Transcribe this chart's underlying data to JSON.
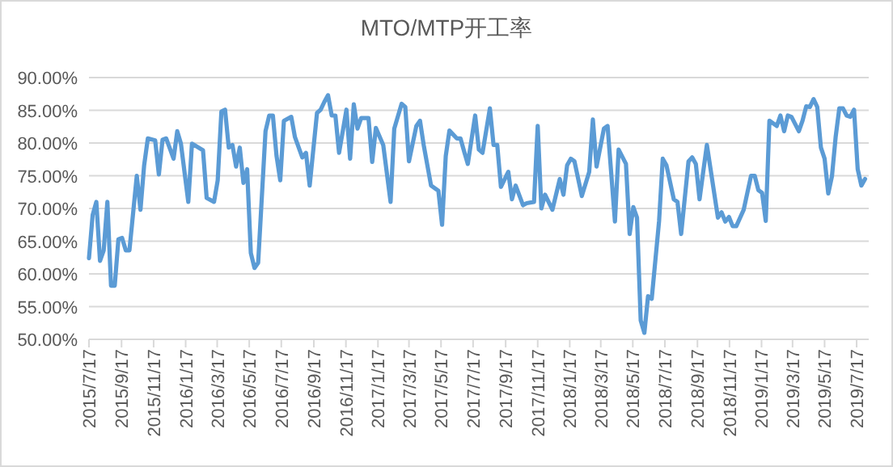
{
  "chart_data": {
    "type": "line",
    "title": "MTO/MTP开工率",
    "color": "#5b9bd5",
    "grid": "y",
    "x": [
      "2015-07-17",
      "2015-07-24",
      "2015-07-31",
      "2015-08-07",
      "2015-08-14",
      "2015-08-21",
      "2015-08-28",
      "2015-09-04",
      "2015-09-11",
      "2015-09-18",
      "2015-09-25",
      "2015-10-02",
      "2015-10-16",
      "2015-10-23",
      "2015-10-30",
      "2015-11-06",
      "2015-11-20",
      "2015-11-27",
      "2015-12-04",
      "2015-12-11",
      "2015-12-25",
      "2016-01-01",
      "2016-01-08",
      "2016-01-22",
      "2016-01-29",
      "2016-02-19",
      "2016-02-26",
      "2016-03-11",
      "2016-03-18",
      "2016-03-25",
      "2016-04-01",
      "2016-04-08",
      "2016-04-15",
      "2016-04-22",
      "2016-04-29",
      "2016-05-06",
      "2016-05-13",
      "2016-05-20",
      "2016-05-27",
      "2016-06-03",
      "2016-06-17",
      "2016-06-24",
      "2016-07-01",
      "2016-07-08",
      "2016-07-15",
      "2016-07-22",
      "2016-08-05",
      "2016-08-12",
      "2016-08-26",
      "2016-09-02",
      "2016-09-09",
      "2016-09-23",
      "2016-09-30",
      "2016-10-07",
      "2016-10-14",
      "2016-10-21",
      "2016-10-28",
      "2016-11-04",
      "2016-11-18",
      "2016-11-25",
      "2016-12-02",
      "2016-12-09",
      "2016-12-16",
      "2016-12-30",
      "2017-01-06",
      "2017-01-13",
      "2017-01-27",
      "2017-02-10",
      "2017-02-17",
      "2017-03-03",
      "2017-03-10",
      "2017-03-17",
      "2017-03-31",
      "2017-04-07",
      "2017-04-14",
      "2017-04-28",
      "2017-05-12",
      "2017-05-19",
      "2017-05-26",
      "2017-06-02",
      "2017-06-16",
      "2017-06-23",
      "2017-06-30",
      "2017-07-07",
      "2017-07-21",
      "2017-07-28",
      "2017-08-04",
      "2017-08-18",
      "2017-08-25",
      "2017-09-01",
      "2017-09-08",
      "2017-09-22",
      "2017-09-29",
      "2017-10-06",
      "2017-10-20",
      "2017-10-27",
      "2017-11-10",
      "2017-11-17",
      "2017-11-24",
      "2017-12-01",
      "2017-12-15",
      "2017-12-29",
      "2018-01-05",
      "2018-01-12",
      "2018-01-19",
      "2018-01-26",
      "2018-02-09",
      "2018-02-23",
      "2018-03-02",
      "2018-03-09",
      "2018-03-23",
      "2018-03-30",
      "2018-04-13",
      "2018-04-20",
      "2018-05-04",
      "2018-05-11",
      "2018-05-18",
      "2018-05-25",
      "2018-06-01",
      "2018-06-08",
      "2018-06-15",
      "2018-06-22",
      "2018-07-06",
      "2018-07-13",
      "2018-07-20",
      "2018-08-03",
      "2018-08-10",
      "2018-08-17",
      "2018-08-31",
      "2018-09-07",
      "2018-09-14",
      "2018-09-21",
      "2018-09-28",
      "2018-10-05",
      "2018-10-26",
      "2018-11-02",
      "2018-11-09",
      "2018-11-16",
      "2018-11-23",
      "2018-11-30",
      "2018-12-14",
      "2018-12-28",
      "2019-01-04",
      "2019-01-11",
      "2019-01-18",
      "2019-01-25",
      "2019-02-01",
      "2019-02-08",
      "2019-02-15",
      "2019-02-22",
      "2019-03-01",
      "2019-03-08",
      "2019-03-15",
      "2019-03-29",
      "2019-04-05",
      "2019-04-12",
      "2019-04-19",
      "2019-04-26",
      "2019-05-03",
      "2019-05-10",
      "2019-05-17",
      "2019-05-24",
      "2019-05-31",
      "2019-06-07",
      "2019-06-14",
      "2019-06-21",
      "2019-06-28",
      "2019-07-05",
      "2019-07-12",
      "2019-07-19",
      "2019-07-26",
      "2019-08-02"
    ],
    "values": [
      62.4,
      69,
      71,
      62,
      63.6,
      71,
      58.2,
      58.2,
      65.3,
      65.5,
      63.6,
      63.6,
      75,
      69.8,
      76.6,
      80.7,
      80.4,
      75.2,
      80.5,
      80.7,
      77.6,
      81.8,
      79.9,
      71,
      79.9,
      78.9,
      71.6,
      71,
      74.3,
      84.8,
      85.1,
      79.3,
      79.7,
      76.4,
      79.3,
      73.9,
      76,
      63.2,
      60.9,
      61.7,
      81.8,
      84.2,
      84.2,
      78,
      74.3,
      83.4,
      84,
      80.9,
      77.8,
      78.5,
      73.5,
      84.6,
      85.1,
      86.3,
      87.3,
      84.2,
      84.2,
      78.5,
      85.1,
      77.6,
      85.9,
      82.2,
      83.8,
      83.8,
      77.1,
      82.3,
      79.7,
      71,
      82.2,
      86,
      85.5,
      77.2,
      82.6,
      83.4,
      79.7,
      73.5,
      72.7,
      67.5,
      78,
      81.9,
      80.7,
      80.7,
      78.7,
      76.8,
      84.2,
      79,
      78.5,
      85.3,
      79.7,
      79.7,
      73.3,
      75.6,
      71.4,
      73.5,
      70.5,
      70.8,
      71,
      82.6,
      70,
      72.1,
      69.8,
      74.5,
      72.1,
      76.6,
      77.6,
      77.2,
      71.9,
      75.6,
      83.6,
      76.4,
      82.2,
      82.6,
      68,
      79,
      76.8,
      66.1,
      70.2,
      68.6,
      52.9,
      51,
      56.6,
      56.2,
      68.1,
      77.6,
      76.6,
      71.4,
      71,
      66.1,
      77.2,
      77.8,
      76.8,
      71.4,
      75.6,
      79.7,
      68.6,
      69.4,
      68,
      68.7,
      67.3,
      67.3,
      69.8,
      75,
      75,
      72.8,
      72.4,
      68.1,
      83.4,
      83,
      82.6,
      84.2,
      81.8,
      84.2,
      84,
      81.8,
      83.4,
      85.6,
      85.5,
      86.7,
      85.5,
      79.3,
      77.6,
      72.3,
      74.9,
      80.9,
      85.3,
      85.3,
      84.2,
      84,
      85.1,
      76,
      73.5,
      74.5
    ],
    "xlim": [
      "2015-07-17",
      "2019-08-09"
    ],
    "xticks": [
      {
        "value": "2015-07-17",
        "label": "2015/7/17"
      },
      {
        "value": "2015-09-17",
        "label": "2015/9/17"
      },
      {
        "value": "2015-11-17",
        "label": "2015/11/17"
      },
      {
        "value": "2016-01-17",
        "label": "2016/1/17"
      },
      {
        "value": "2016-03-17",
        "label": "2016/3/17"
      },
      {
        "value": "2016-05-17",
        "label": "2016/5/17"
      },
      {
        "value": "2016-07-17",
        "label": "2016/7/17"
      },
      {
        "value": "2016-09-17",
        "label": "2016/9/17"
      },
      {
        "value": "2016-11-17",
        "label": "2016/11/17"
      },
      {
        "value": "2017-01-17",
        "label": "2017/1/17"
      },
      {
        "value": "2017-03-17",
        "label": "2017/3/17"
      },
      {
        "value": "2017-05-17",
        "label": "2017/5/17"
      },
      {
        "value": "2017-07-17",
        "label": "2017/7/17"
      },
      {
        "value": "2017-09-17",
        "label": "2017/9/17"
      },
      {
        "value": "2017-11-17",
        "label": "2017/11/17"
      },
      {
        "value": "2018-01-17",
        "label": "2018/1/17"
      },
      {
        "value": "2018-03-17",
        "label": "2018/3/17"
      },
      {
        "value": "2018-05-17",
        "label": "2018/5/17"
      },
      {
        "value": "2018-07-17",
        "label": "2018/7/17"
      },
      {
        "value": "2018-09-17",
        "label": "2018/9/17"
      },
      {
        "value": "2018-11-17",
        "label": "2018/11/17"
      },
      {
        "value": "2019-01-17",
        "label": "2019/1/17"
      },
      {
        "value": "2019-03-17",
        "label": "2019/3/17"
      },
      {
        "value": "2019-05-17",
        "label": "2019/5/17"
      },
      {
        "value": "2019-07-17",
        "label": "2019/7/17"
      }
    ],
    "ylim": [
      50,
      90
    ],
    "yticks": [
      {
        "value": 50,
        "label": "50.00%"
      },
      {
        "value": 55,
        "label": "55.00%"
      },
      {
        "value": 60,
        "label": "60.00%"
      },
      {
        "value": 65,
        "label": "65.00%"
      },
      {
        "value": 70,
        "label": "70.00%"
      },
      {
        "value": 75,
        "label": "75.00%"
      },
      {
        "value": 80,
        "label": "80.00%"
      },
      {
        "value": 85,
        "label": "85.00%"
      },
      {
        "value": 90,
        "label": "90.00%"
      }
    ]
  }
}
